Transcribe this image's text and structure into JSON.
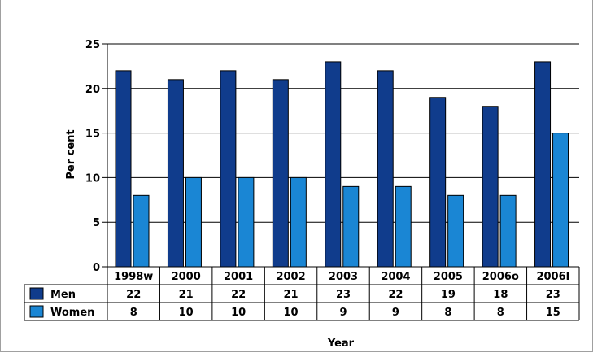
{
  "chart_data": {
    "type": "bar",
    "categories": [
      "1998w",
      "2000",
      "2001",
      "2002",
      "2003",
      "2004",
      "2005",
      "2006o",
      "2006l"
    ],
    "series": [
      {
        "name": "Men",
        "color": "#103c8c",
        "values": [
          22,
          21,
          22,
          21,
          23,
          22,
          19,
          18,
          23
        ]
      },
      {
        "name": "Women",
        "color": "#1a86d4",
        "values": [
          8,
          10,
          10,
          10,
          9,
          9,
          8,
          8,
          15
        ]
      }
    ],
    "title": "",
    "xlabel": "Year",
    "ylabel": "Per cent",
    "ylim": [
      0,
      25
    ],
    "yticks": [
      0,
      5,
      10,
      15,
      20,
      25
    ],
    "grid": true,
    "legend": "table-below"
  }
}
